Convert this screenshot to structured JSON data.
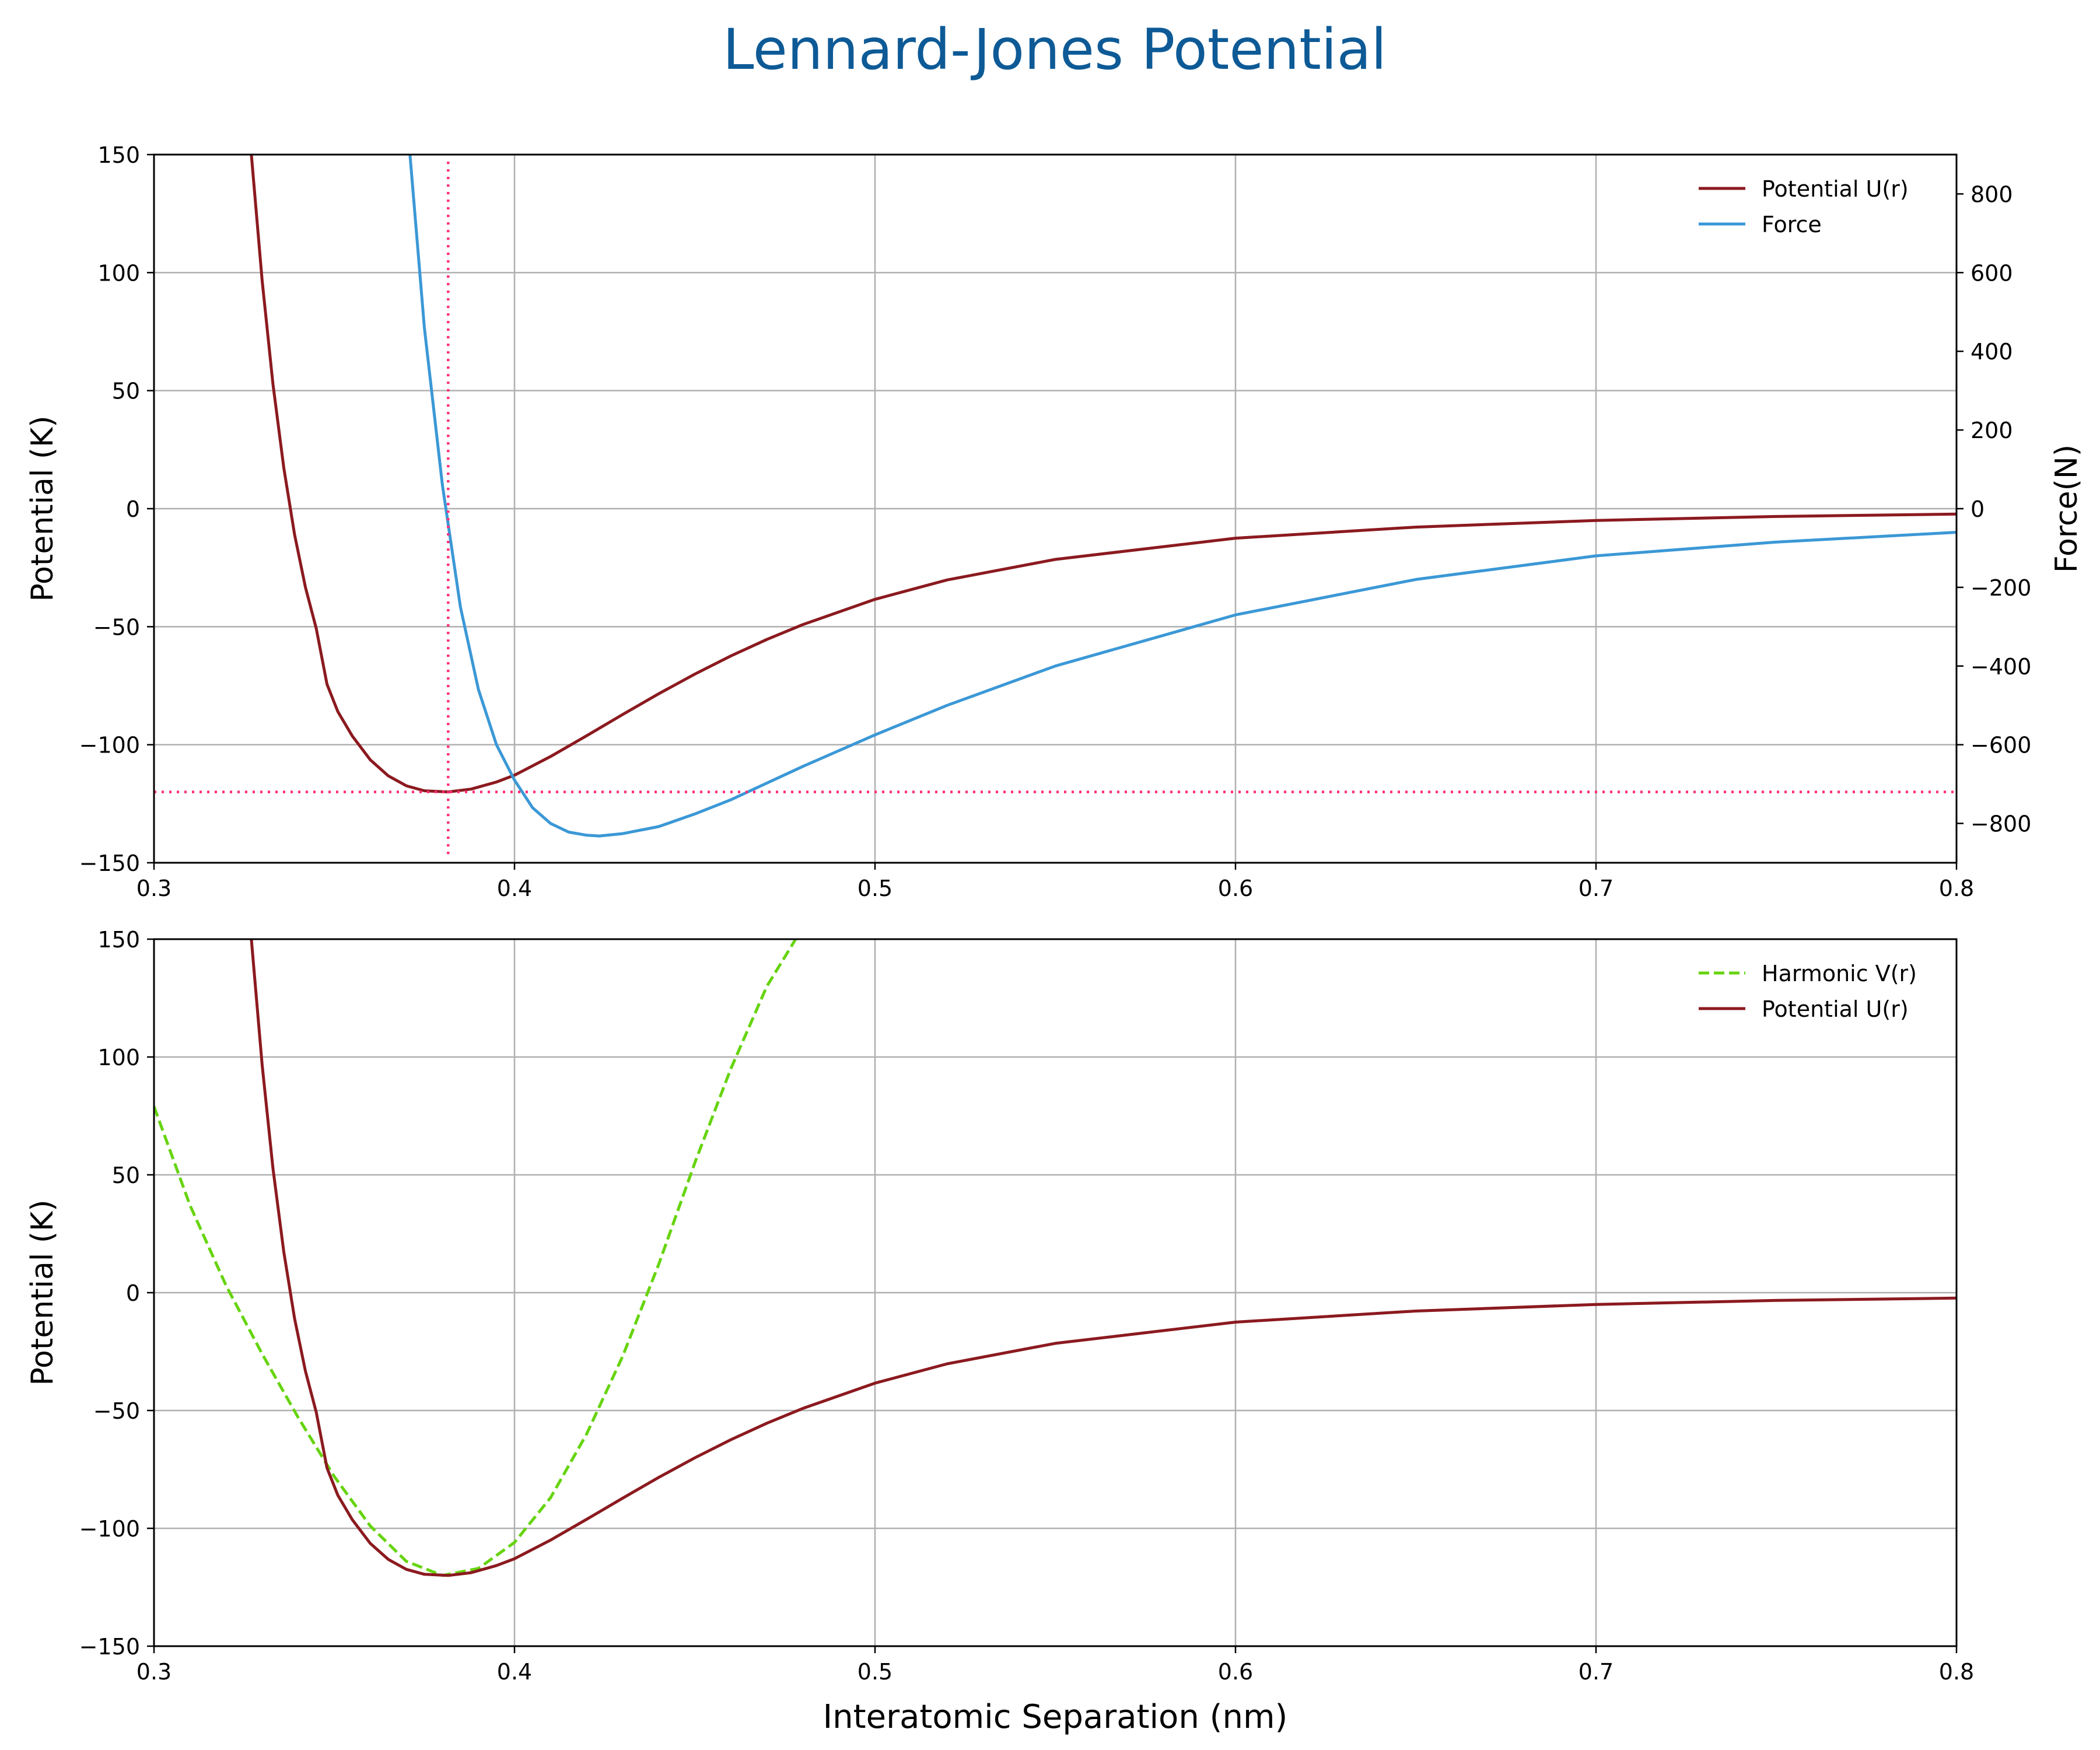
{
  "figure": {
    "title": "Lennard-Jones Potential",
    "title_color": "#0d5a96"
  },
  "colors": {
    "potential": "#8b1a1f",
    "force": "#3b98d6",
    "harmonic": "#66d40e",
    "reference": "#ff2d7a",
    "grid": "#b0b0b0",
    "axis": "#000000"
  },
  "chart_data": [
    {
      "type": "line",
      "title": "",
      "xlabel": "",
      "ylabel": "Potential (K)",
      "y2label": "Force(N)",
      "xlim": [
        0.3,
        0.8
      ],
      "ylim": [
        -150,
        150
      ],
      "y2lim": [
        -900,
        900
      ],
      "xticks": [
        0.3,
        0.4,
        0.5,
        0.6,
        0.7,
        0.8
      ],
      "xtick_labels": [
        "0.3",
        "0.4",
        "0.5",
        "0.6",
        "0.7",
        "0.8"
      ],
      "yticks": [
        150,
        100,
        50,
        0,
        -50,
        -100,
        -150
      ],
      "ytick_labels": [
        "150",
        "100",
        "50",
        "0",
        "−50",
        "−100",
        "−150"
      ],
      "y2ticks": [
        800,
        600,
        400,
        200,
        0,
        -200,
        -400,
        -600,
        -800
      ],
      "y2tick_labels": [
        "800",
        "600",
        "400",
        "200",
        "0",
        "−200",
        "−400",
        "−600",
        "−800"
      ],
      "grid": true,
      "legend": "top-right",
      "series": [
        {
          "name": "Potential U(r)",
          "axis": "left",
          "style": "solid",
          "x": [
            0.327,
            0.33,
            0.333,
            0.336,
            0.339,
            0.342,
            0.345,
            0.348,
            0.351,
            0.355,
            0.36,
            0.365,
            0.37,
            0.375,
            0.3816,
            0.388,
            0.395,
            0.4,
            0.41,
            0.42,
            0.43,
            0.44,
            0.45,
            0.46,
            0.47,
            0.48,
            0.5,
            0.52,
            0.55,
            0.6,
            0.65,
            0.7,
            0.75,
            0.8
          ],
          "y": [
            150,
            96.6,
            52.8,
            17.3,
            -11.0,
            -33.3,
            -50.7,
            -74.4,
            -86.0,
            -96.3,
            -106.4,
            -113.2,
            -117.4,
            -119.5,
            -120.0,
            -118.8,
            -115.8,
            -112.9,
            -105.0,
            -96.2,
            -87.2,
            -78.4,
            -70.1,
            -62.4,
            -55.4,
            -49.1,
            -38.4,
            -30.2,
            -21.5,
            -12.5,
            -7.8,
            -5.0,
            -3.3,
            -2.3
          ]
        },
        {
          "name": "Force",
          "axis": "right",
          "style": "solid",
          "x": [
            0.371,
            0.375,
            0.38,
            0.385,
            0.39,
            0.395,
            0.4,
            0.405,
            0.41,
            0.415,
            0.42,
            0.4235,
            0.43,
            0.44,
            0.45,
            0.46,
            0.48,
            0.5,
            0.52,
            0.55,
            0.6,
            0.65,
            0.7,
            0.75,
            0.8
          ],
          "y": [
            900,
            460,
            60,
            -250,
            -460,
            -600,
            -690,
            -760,
            -800,
            -822,
            -830,
            -832,
            -826,
            -808,
            -776,
            -740,
            -655,
            -575,
            -500,
            -400,
            -270,
            -180,
            -120,
            -85,
            -60
          ]
        },
        {
          "name": "",
          "axis": "left",
          "style": "dotted",
          "role": "reference",
          "x": [
            0.3816,
            0.3816
          ],
          "y": [
            147,
            -147
          ]
        },
        {
          "name": "",
          "axis": "left",
          "style": "dotted",
          "role": "reference",
          "x": [
            0.3,
            0.8
          ],
          "y": [
            -120,
            -120
          ]
        }
      ]
    },
    {
      "type": "line",
      "title": "",
      "xlabel": "Interatomic Separation (nm)",
      "ylabel": "Potential (K)",
      "xlim": [
        0.3,
        0.8
      ],
      "ylim": [
        -150,
        150
      ],
      "xticks": [
        0.3,
        0.4,
        0.5,
        0.6,
        0.7,
        0.8
      ],
      "xtick_labels": [
        "0.3",
        "0.4",
        "0.5",
        "0.6",
        "0.7",
        "0.8"
      ],
      "yticks": [
        150,
        100,
        50,
        0,
        -50,
        -100,
        -150
      ],
      "ytick_labels": [
        "150",
        "100",
        "50",
        "0",
        "−50",
        "−100",
        "−150"
      ],
      "grid": true,
      "legend": "top-right",
      "series": [
        {
          "name": "Harmonic V(r)",
          "style": "dashed",
          "x": [
            0.3,
            0.31,
            0.32,
            0.33,
            0.34,
            0.35,
            0.36,
            0.37,
            0.38,
            0.39,
            0.4,
            0.41,
            0.42,
            0.43,
            0.44,
            0.45,
            0.46,
            0.47,
            0.478
          ],
          "y": [
            79,
            37,
            3,
            -26,
            -53,
            -78,
            -99,
            -114,
            -120,
            -117,
            -106,
            -87,
            -60,
            -27,
            12,
            55,
            95,
            130,
            150
          ]
        },
        {
          "name": "Potential U(r)",
          "style": "solid",
          "x": [
            0.327,
            0.33,
            0.333,
            0.336,
            0.339,
            0.342,
            0.345,
            0.348,
            0.351,
            0.355,
            0.36,
            0.365,
            0.37,
            0.375,
            0.3816,
            0.388,
            0.395,
            0.4,
            0.41,
            0.42,
            0.43,
            0.44,
            0.45,
            0.46,
            0.47,
            0.48,
            0.5,
            0.52,
            0.55,
            0.6,
            0.65,
            0.7,
            0.75,
            0.8
          ],
          "y": [
            150,
            96.6,
            52.8,
            17.3,
            -11.0,
            -33.3,
            -50.7,
            -74.4,
            -86.0,
            -96.3,
            -106.4,
            -113.2,
            -117.4,
            -119.5,
            -120.0,
            -118.8,
            -115.8,
            -112.9,
            -105.0,
            -96.2,
            -87.2,
            -78.4,
            -70.1,
            -62.4,
            -55.4,
            -49.1,
            -38.4,
            -30.2,
            -21.5,
            -12.5,
            -7.8,
            -5.0,
            -3.3,
            -2.3
          ]
        }
      ]
    }
  ]
}
